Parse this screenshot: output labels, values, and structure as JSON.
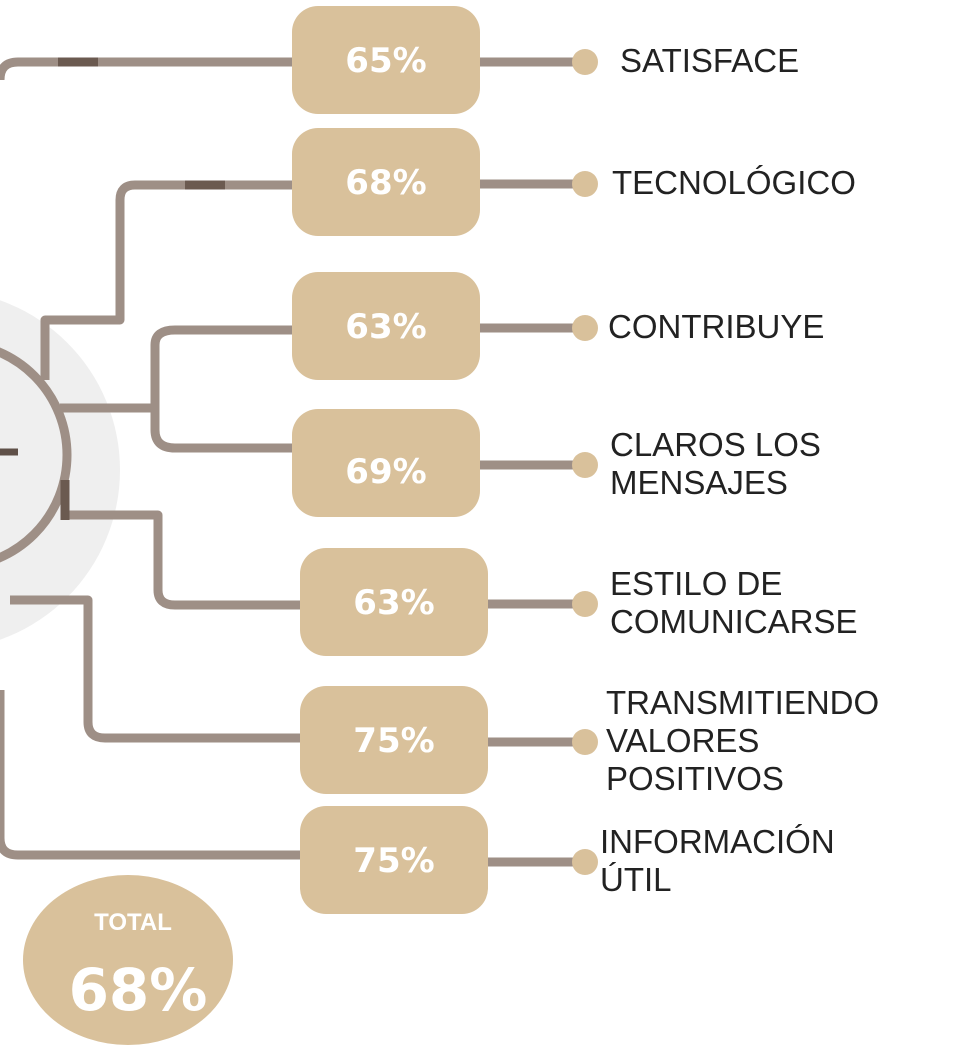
{
  "items": [
    {
      "percent": "65%",
      "label": [
        "SATISFACE"
      ]
    },
    {
      "percent": "68%",
      "label": [
        "TECNOLÓGICO"
      ]
    },
    {
      "percent": "63%",
      "label": [
        "CONTRIBUYE"
      ]
    },
    {
      "percent": "69%",
      "label": [
        "CLAROS LOS",
        "MENSAJES"
      ]
    },
    {
      "percent": "63%",
      "label": [
        "ESTILO DE",
        "COMUNICARSE"
      ]
    },
    {
      "percent": "75%",
      "label": [
        "TRANSMITIENDO",
        "VALORES",
        "POSITIVOS"
      ]
    },
    {
      "percent": "75%",
      "label": [
        "INFORMACIÓN",
        "ÚTIL"
      ]
    }
  ],
  "total": {
    "label": "TOTAL",
    "percent": "68%"
  }
}
